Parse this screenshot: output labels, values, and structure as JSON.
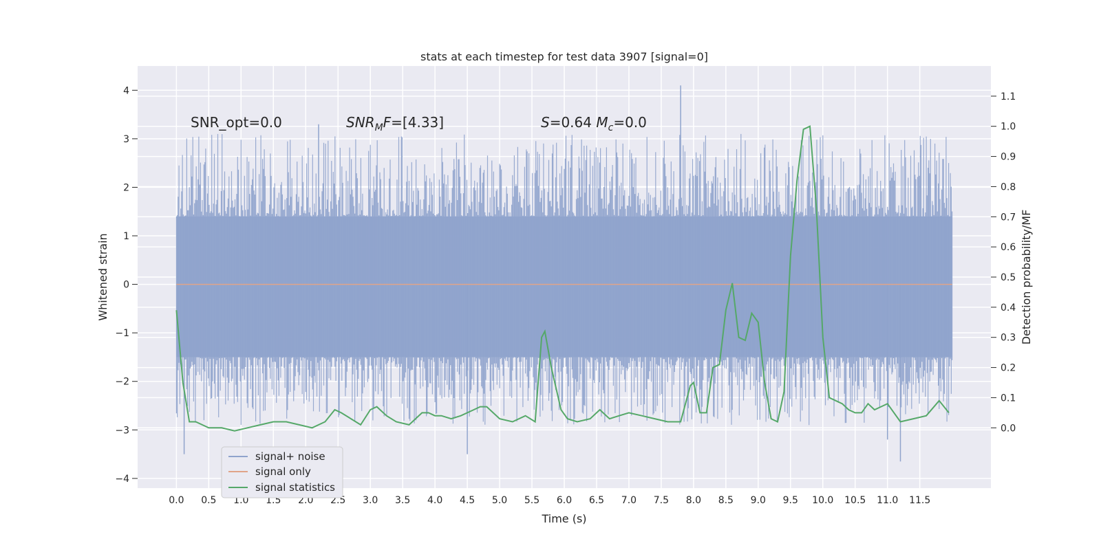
{
  "chart_data": {
    "type": "line",
    "title": "stats at each timestep for test data 3907 [signal=0]",
    "xlabel": "Time (s)",
    "ylabel": "Whitened strain",
    "y2label": "Detection probability/MF",
    "xlim": [
      -0.6,
      12.6
    ],
    "ylim": [
      -4.2,
      4.5
    ],
    "y2lim": [
      -0.2,
      1.2
    ],
    "xticks": [
      "0.0",
      "0.5",
      "1.0",
      "1.5",
      "2.0",
      "2.5",
      "3.0",
      "3.5",
      "4.0",
      "4.5",
      "5.0",
      "5.5",
      "6.0",
      "6.5",
      "7.0",
      "7.5",
      "8.0",
      "8.5",
      "9.0",
      "9.5",
      "10.0",
      "10.5",
      "11.0",
      "11.5"
    ],
    "yticks": [
      "4",
      "3",
      "2",
      "1",
      "0",
      "−1",
      "−2",
      "−3",
      "−4"
    ],
    "y2ticks": [
      "1.1",
      "1.0",
      "0.9",
      "0.8",
      "0.7",
      "0.6",
      "0.5",
      "0.4",
      "0.3",
      "0.2",
      "0.1",
      "0.0"
    ],
    "grid": true,
    "legend": {
      "location": "lower-left",
      "entries": [
        {
          "name": "signal+ noise",
          "color": "#8fa3cc"
        },
        {
          "name": "signal only",
          "color": "#e0a488"
        },
        {
          "name": "signal statistics",
          "color": "#55a868"
        }
      ]
    },
    "annotations": [
      {
        "x": 0.2,
        "y": 3.3,
        "text": "SNR_opt=0.0"
      },
      {
        "x": 2.6,
        "y": 3.3,
        "text": "SNR_MF=[4.33]"
      },
      {
        "x": 5.6,
        "y": 3.3,
        "text": "S=0.64   M_c=0.0"
      }
    ],
    "series": [
      {
        "name": "signal+ noise",
        "style": "noise band",
        "x_range": [
          0.0,
          12.0
        ],
        "core_band": [
          -1.5,
          1.4
        ],
        "notable_spikes": [
          [
            0.12,
            -3.5
          ],
          [
            2.2,
            3.3
          ],
          [
            4.5,
            -3.5
          ],
          [
            7.8,
            4.1
          ],
          [
            11.0,
            -3.2
          ],
          [
            11.2,
            -3.65
          ]
        ]
      },
      {
        "name": "signal only",
        "x": [
          0.0,
          12.0
        ],
        "y": [
          0.0,
          0.0
        ]
      },
      {
        "name": "signal statistics",
        "axis": "right",
        "x": [
          0.0,
          0.1,
          0.2,
          0.3,
          0.4,
          0.5,
          0.7,
          0.9,
          1.1,
          1.3,
          1.5,
          1.7,
          1.9,
          2.1,
          2.3,
          2.45,
          2.55,
          2.7,
          2.85,
          3.0,
          3.1,
          3.25,
          3.4,
          3.6,
          3.8,
          3.9,
          4.0,
          4.1,
          4.25,
          4.4,
          4.6,
          4.7,
          4.8,
          5.0,
          5.2,
          5.4,
          5.55,
          5.65,
          5.7,
          5.8,
          5.95,
          6.05,
          6.2,
          6.4,
          6.55,
          6.7,
          6.85,
          7.0,
          7.2,
          7.4,
          7.6,
          7.8,
          7.95,
          8.0,
          8.1,
          8.2,
          8.3,
          8.4,
          8.5,
          8.6,
          8.7,
          8.8,
          8.9,
          9.0,
          9.1,
          9.2,
          9.3,
          9.4,
          9.5,
          9.6,
          9.7,
          9.8,
          9.9,
          10.0,
          10.1,
          10.2,
          10.3,
          10.4,
          10.5,
          10.6,
          10.7,
          10.8,
          10.9,
          11.0,
          11.2,
          11.4,
          11.6,
          11.8,
          11.95
        ],
        "y": [
          0.39,
          0.15,
          0.02,
          0.02,
          0.01,
          0.0,
          0.0,
          -0.01,
          0.0,
          0.01,
          0.02,
          0.02,
          0.01,
          0.0,
          0.02,
          0.06,
          0.05,
          0.03,
          0.01,
          0.06,
          0.07,
          0.04,
          0.02,
          0.01,
          0.05,
          0.05,
          0.04,
          0.04,
          0.03,
          0.04,
          0.06,
          0.07,
          0.07,
          0.03,
          0.02,
          0.04,
          0.02,
          0.3,
          0.32,
          0.2,
          0.06,
          0.03,
          0.02,
          0.03,
          0.06,
          0.03,
          0.04,
          0.05,
          0.04,
          0.03,
          0.02,
          0.02,
          0.14,
          0.15,
          0.05,
          0.05,
          0.2,
          0.21,
          0.39,
          0.48,
          0.3,
          0.29,
          0.38,
          0.35,
          0.15,
          0.03,
          0.02,
          0.12,
          0.57,
          0.82,
          0.99,
          1.0,
          0.73,
          0.3,
          0.1,
          0.09,
          0.08,
          0.06,
          0.05,
          0.05,
          0.08,
          0.06,
          0.07,
          0.08,
          0.02,
          0.03,
          0.04,
          0.09,
          0.05
        ]
      }
    ]
  }
}
